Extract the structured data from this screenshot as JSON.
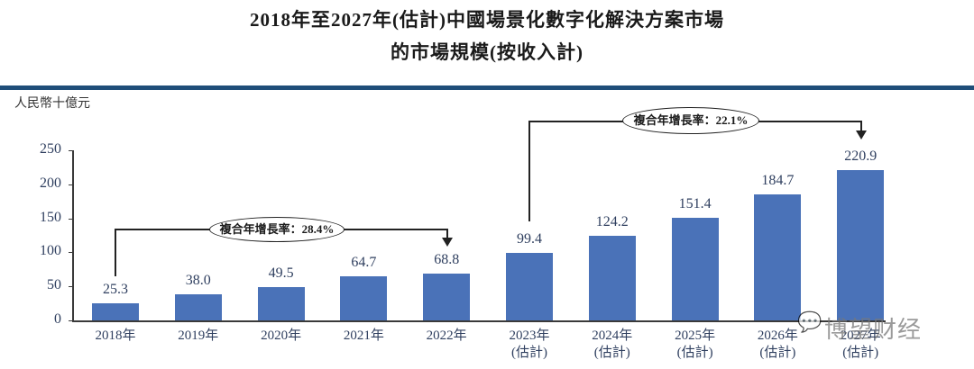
{
  "chart_data": {
    "type": "bar",
    "title": "2018年至2027年(估計)中國場景化數字化解決方案市場的市場規模(按收入計)",
    "title_lines": [
      "2018年至2027年(估計)中國場景化數字化解決方案市場",
      "的市場規模(按收入計)"
    ],
    "unit_label": "人民幣十億元",
    "xlabel": "",
    "ylabel": "人民幣十億元",
    "ylim": [
      0,
      250
    ],
    "yticks": [
      "0",
      "50",
      "100",
      "150",
      "200",
      "250"
    ],
    "grid": false,
    "legend": null,
    "categories": [
      "2018年",
      "2019年",
      "2020年",
      "2021年",
      "2022年",
      "2023年(估計)",
      "2024年(估計)",
      "2025年(估計)",
      "2026年(估計)",
      "2027年(估計)"
    ],
    "category_labels": [
      {
        "year": "2018年",
        "sub": ""
      },
      {
        "year": "2019年",
        "sub": ""
      },
      {
        "year": "2020年",
        "sub": ""
      },
      {
        "year": "2021年",
        "sub": ""
      },
      {
        "year": "2022年",
        "sub": ""
      },
      {
        "year": "2023年",
        "sub": "(估計)"
      },
      {
        "year": "2024年",
        "sub": "(估計)"
      },
      {
        "year": "2025年",
        "sub": "(估計)"
      },
      {
        "year": "2026年",
        "sub": "(估計)"
      },
      {
        "year": "2027年",
        "sub": "(估計)"
      }
    ],
    "values": [
      25.3,
      38.0,
      49.5,
      64.7,
      68.8,
      99.4,
      124.2,
      151.4,
      184.7,
      220.9
    ],
    "value_labels": [
      "25.3",
      "38.0",
      "49.5",
      "64.7",
      "68.8",
      "99.4",
      "124.2",
      "151.4",
      "184.7",
      "220.9"
    ],
    "annotations": [
      {
        "text": "複合年增長率：28.4%",
        "from": "2018年",
        "to": "2022年"
      },
      {
        "text": "複合年增長率：22.1%",
        "from": "2023年(估計)",
        "to": "2027年(估計)"
      }
    ],
    "bar_color": "#4a72b8"
  },
  "header": {
    "title_line1": "2018年至2027年(估計)中國場景化數字化解決方案市場",
    "title_line2": "的市場規模(按收入計)",
    "unit": "人民幣十億元"
  },
  "watermark": {
    "text": "博望财经",
    "icon": "wechat-icon"
  }
}
